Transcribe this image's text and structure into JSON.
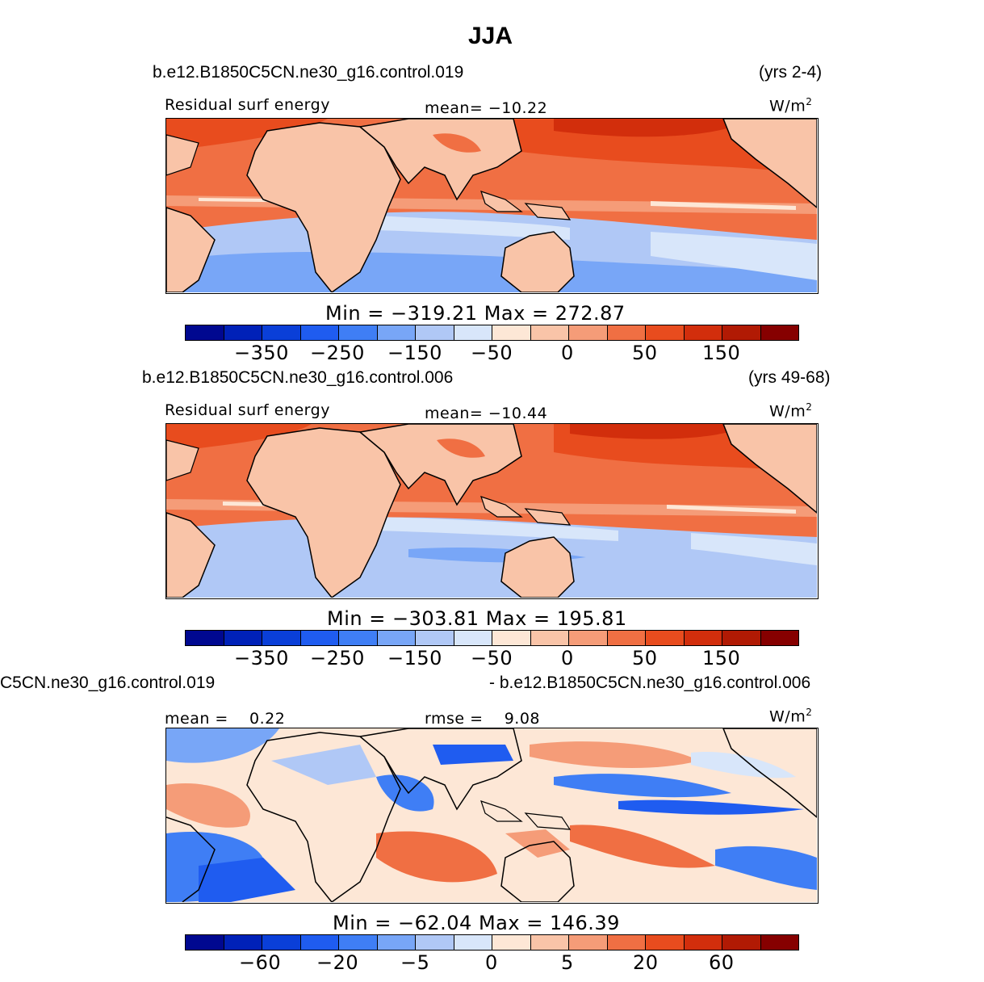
{
  "title": "JJA",
  "panels": [
    {
      "case": "b.e12.B1850C5CN.ne30_g16.control.019",
      "years": "(yrs 2-4)",
      "variable": "Residual surf energy",
      "stat_label": "mean=",
      "stat_value": "−10.22",
      "units_base": "W/m",
      "units_exp": "2",
      "min_label": "Min",
      "min_value": "−319.21",
      "max_label": "Max",
      "max_value": "272.87",
      "ticks": [
        "−350",
        "−250",
        "−150",
        "−50",
        "0",
        "50",
        "150"
      ]
    },
    {
      "case": "b.e12.B1850C5CN.ne30_g16.control.006",
      "years": "(yrs 49-68)",
      "variable": "Residual surf energy",
      "stat_label": "mean=",
      "stat_value": "−10.44",
      "units_base": "W/m",
      "units_exp": "2",
      "min_label": "Min",
      "min_value": "−303.81",
      "max_label": "Max",
      "max_value": "195.81",
      "ticks": [
        "−350",
        "−250",
        "−150",
        "−50",
        "0",
        "50",
        "150"
      ]
    },
    {
      "case_left": "C5CN.ne30_g16.control.019",
      "case_right": "- b.e12.B1850C5CN.ne30_g16.control.006",
      "stat_label": "mean =",
      "stat_value": "0.22",
      "rmse_label": "rmse =",
      "rmse_value": "9.08",
      "units_base": "W/m",
      "units_exp": "2",
      "min_label": "Min",
      "min_value": "−62.04",
      "max_label": "Max",
      "max_value": "146.39",
      "ticks": [
        "−60",
        "−20",
        "−5",
        "0",
        "5",
        "20",
        "60"
      ]
    }
  ],
  "colorbar_colors": [
    "#000890",
    "#0021b8",
    "#0a3fd8",
    "#1f5cf0",
    "#3f7ef5",
    "#78a6f7",
    "#b0c8f6",
    "#d8e6fa",
    "#fde7d6",
    "#f9c4a8",
    "#f59c78",
    "#f06f43",
    "#e84c1e",
    "#d22e0c",
    "#b11a04",
    "#860000"
  ],
  "map_colors": {
    "land": "#f9c4a8",
    "warm1": "#f59c78",
    "warm2": "#f06f43",
    "warm3": "#e84c1e",
    "warm4": "#d22e0c",
    "cool1": "#d8e6fa",
    "cool2": "#b0c8f6",
    "cool3": "#78a6f7",
    "cool4": "#3f7ef5",
    "cool5": "#1f5cf0",
    "neutral": "#fde7d6"
  }
}
